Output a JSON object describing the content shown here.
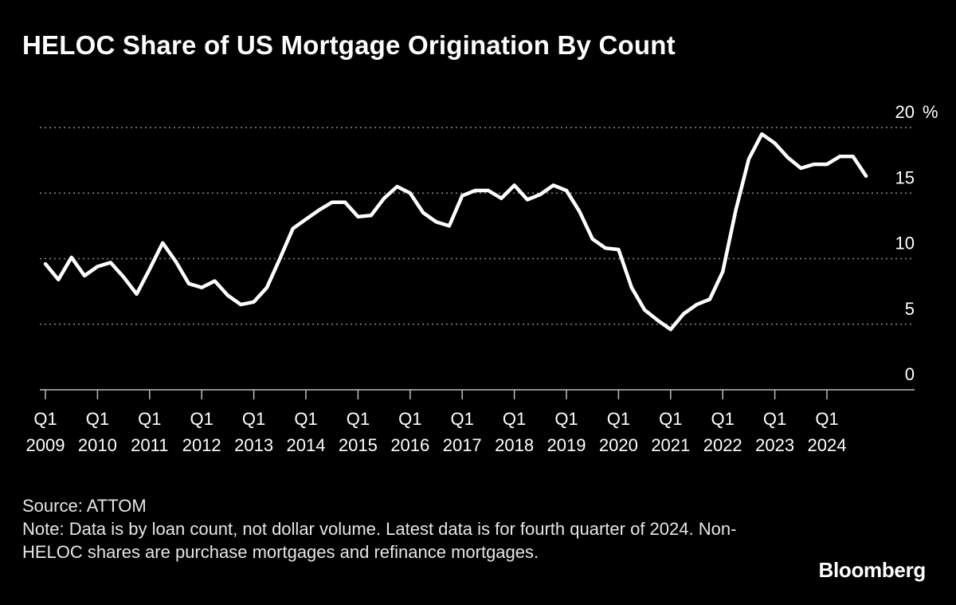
{
  "header": {
    "title": "HELOC Share of US Mortgage Origination By Count"
  },
  "footer": {
    "source": "Source: ATTOM",
    "note": "Note: Data is by loan count, not dollar volume. Latest data is for fourth quarter of 2024. Non-HELOC shares are purchase mortgages and refinance mortgages."
  },
  "brand": {
    "logo_text": "Bloomberg"
  },
  "colors": {
    "background": "#000000",
    "line": "#ffffff",
    "grid": "#8a8a8a",
    "text": "#ffffff"
  },
  "chart_data": {
    "type": "line",
    "title": "HELOC Share of US Mortgage Origination By Count",
    "xlabel": "",
    "ylabel": "",
    "y_unit": "%",
    "ylim": [
      0,
      20
    ],
    "yticks": [
      0,
      5,
      10,
      15,
      20
    ],
    "grid": "horizontal-dotted",
    "x_start": "2009 Q1",
    "x_end": "2024 Q4",
    "x_tick_top": "Q1",
    "x_tick_years": [
      "2009",
      "2010",
      "2011",
      "2012",
      "2013",
      "2014",
      "2015",
      "2016",
      "2017",
      "2018",
      "2019",
      "2020",
      "2021",
      "2022",
      "2023",
      "2024"
    ],
    "series": [
      {
        "values": [
          9.6,
          8.4,
          10.1,
          8.7,
          9.4,
          9.7,
          8.6,
          7.3,
          9.2,
          11.2,
          9.8,
          8.1,
          7.8,
          8.3,
          7.2,
          6.5,
          6.7,
          7.8,
          10.0,
          12.3,
          13.0,
          13.7,
          14.3,
          14.3,
          13.2,
          13.3,
          14.6,
          15.5,
          15.0,
          13.5,
          12.8,
          12.5,
          14.8,
          15.2,
          15.2,
          14.6,
          15.6,
          14.5,
          14.9,
          15.6,
          15.2,
          13.6,
          11.5,
          10.8,
          10.7,
          7.8,
          6.1,
          5.3,
          4.6,
          5.8,
          6.5,
          6.9,
          9.0,
          13.7,
          17.6,
          19.5,
          18.8,
          17.7,
          16.9,
          17.2,
          17.2,
          17.8,
          17.8,
          16.3
        ]
      }
    ]
  }
}
